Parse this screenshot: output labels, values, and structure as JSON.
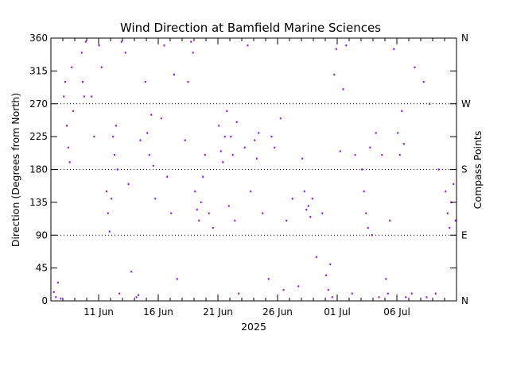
{
  "chart_data": {
    "type": "scatter",
    "title": "Wind Direction at Bamfield Marine Sciences",
    "xlabel": "2025",
    "ylabel": "Direction (Degrees from North)",
    "y2label": "Compass Points",
    "ylim": [
      0,
      360
    ],
    "yticks": [
      0,
      45,
      90,
      135,
      180,
      225,
      270,
      315,
      360
    ],
    "xlim": [
      "2025-06-07",
      "2025-07-11"
    ],
    "xticks": [
      {
        "date": "2025-06-11",
        "label": "11 Jun"
      },
      {
        "date": "2025-06-16",
        "label": "16 Jun"
      },
      {
        "date": "2025-06-21",
        "label": "21 Jun"
      },
      {
        "date": "2025-06-26",
        "label": "26 Jun"
      },
      {
        "date": "2025-07-01",
        "label": "01 Jul"
      },
      {
        "date": "2025-07-06",
        "label": "06 Jul"
      }
    ],
    "compass_points": [
      {
        "value": 0,
        "label": "N"
      },
      {
        "value": 90,
        "label": "E"
      },
      {
        "value": 180,
        "label": "S"
      },
      {
        "value": 270,
        "label": "W"
      },
      {
        "value": 360,
        "label": "N"
      }
    ],
    "gridlines": [
      90,
      180,
      270
    ],
    "grid_style": "dotted",
    "point_color": "#8b1cff",
    "series": [
      {
        "values": [
          {
            "x": "2025-06-07T06:00",
            "y": 12
          },
          {
            "x": "2025-06-07T10:00",
            "y": 5
          },
          {
            "x": "2025-06-07T14:00",
            "y": 25
          },
          {
            "x": "2025-06-07T20:00",
            "y": 3
          },
          {
            "x": "2025-06-08T02:00",
            "y": 280
          },
          {
            "x": "2025-06-08T05:00",
            "y": 300
          },
          {
            "x": "2025-06-08T08:00",
            "y": 240
          },
          {
            "x": "2025-06-08T11:00",
            "y": 210
          },
          {
            "x": "2025-06-08T14:00",
            "y": 190
          },
          {
            "x": "2025-06-08T18:00",
            "y": 320
          },
          {
            "x": "2025-06-08T21:00",
            "y": 260
          },
          {
            "x": "2025-06-09T14:00",
            "y": 340
          },
          {
            "x": "2025-06-09T16:00",
            "y": 300
          },
          {
            "x": "2025-06-09T19:00",
            "y": 280
          },
          {
            "x": "2025-06-09T22:00",
            "y": 355
          },
          {
            "x": "2025-06-10T10:00",
            "y": 280
          },
          {
            "x": "2025-06-10T15:00",
            "y": 225
          },
          {
            "x": "2025-06-11T01:00",
            "y": 350
          },
          {
            "x": "2025-06-11T06:00",
            "y": 320
          },
          {
            "x": "2025-06-11T16:00",
            "y": 150
          },
          {
            "x": "2025-06-11T19:00",
            "y": 120
          },
          {
            "x": "2025-06-11T22:00",
            "y": 95
          },
          {
            "x": "2025-06-12T02:00",
            "y": 140
          },
          {
            "x": "2025-06-12T05:00",
            "y": 225
          },
          {
            "x": "2025-06-12T08:00",
            "y": 200
          },
          {
            "x": "2025-06-12T11:00",
            "y": 240
          },
          {
            "x": "2025-06-12T14:00",
            "y": 180
          },
          {
            "x": "2025-06-12T18:00",
            "y": 10
          },
          {
            "x": "2025-06-12T22:00",
            "y": 355
          },
          {
            "x": "2025-06-13T06:00",
            "y": 340
          },
          {
            "x": "2025-06-13T12:00",
            "y": 160
          },
          {
            "x": "2025-06-13T18:00",
            "y": 40
          },
          {
            "x": "2025-06-14T04:00",
            "y": 5
          },
          {
            "x": "2025-06-14T08:00",
            "y": 8
          },
          {
            "x": "2025-06-14T12:00",
            "y": 220
          },
          {
            "x": "2025-06-14T22:00",
            "y": 300
          },
          {
            "x": "2025-06-15T02:00",
            "y": 230
          },
          {
            "x": "2025-06-15T06:00",
            "y": 200
          },
          {
            "x": "2025-06-15T10:00",
            "y": 255
          },
          {
            "x": "2025-06-15T14:00",
            "y": 185
          },
          {
            "x": "2025-06-15T18:00",
            "y": 140
          },
          {
            "x": "2025-06-16T06:00",
            "y": 250
          },
          {
            "x": "2025-06-16T12:00",
            "y": 350
          },
          {
            "x": "2025-06-16T18:00",
            "y": 170
          },
          {
            "x": "2025-06-17T02:00",
            "y": 120
          },
          {
            "x": "2025-06-17T08:00",
            "y": 310
          },
          {
            "x": "2025-06-17T14:00",
            "y": 30
          },
          {
            "x": "2025-06-18T06:00",
            "y": 220
          },
          {
            "x": "2025-06-18T12:00",
            "y": 300
          },
          {
            "x": "2025-06-18T18:00",
            "y": 355
          },
          {
            "x": "2025-06-18T22:00",
            "y": 340
          },
          {
            "x": "2025-06-19T02:00",
            "y": 150
          },
          {
            "x": "2025-06-19T06:00",
            "y": 125
          },
          {
            "x": "2025-06-19T10:00",
            "y": 110
          },
          {
            "x": "2025-06-19T14:00",
            "y": 135
          },
          {
            "x": "2025-06-19T18:00",
            "y": 170
          },
          {
            "x": "2025-06-19T22:00",
            "y": 200
          },
          {
            "x": "2025-06-20T06:00",
            "y": 120
          },
          {
            "x": "2025-06-20T14:00",
            "y": 100
          },
          {
            "x": "2025-06-21T02:00",
            "y": 240
          },
          {
            "x": "2025-06-21T06:00",
            "y": 205
          },
          {
            "x": "2025-06-21T10:00",
            "y": 190
          },
          {
            "x": "2025-06-21T14:00",
            "y": 225
          },
          {
            "x": "2025-06-21T18:00",
            "y": 260
          },
          {
            "x": "2025-06-21T22:00",
            "y": 130
          },
          {
            "x": "2025-06-22T02:00",
            "y": 225
          },
          {
            "x": "2025-06-22T06:00",
            "y": 200
          },
          {
            "x": "2025-06-22T10:00",
            "y": 110
          },
          {
            "x": "2025-06-22T14:00",
            "y": 245
          },
          {
            "x": "2025-06-22T18:00",
            "y": 10
          },
          {
            "x": "2025-06-23T06:00",
            "y": 210
          },
          {
            "x": "2025-06-23T12:00",
            "y": 350
          },
          {
            "x": "2025-06-23T18:00",
            "y": 150
          },
          {
            "x": "2025-06-24T02:00",
            "y": 220
          },
          {
            "x": "2025-06-24T06:00",
            "y": 195
          },
          {
            "x": "2025-06-24T10:00",
            "y": 230
          },
          {
            "x": "2025-06-24T18:00",
            "y": 120
          },
          {
            "x": "2025-06-25T06:00",
            "y": 30
          },
          {
            "x": "2025-06-25T12:00",
            "y": 225
          },
          {
            "x": "2025-06-25T18:00",
            "y": 210
          },
          {
            "x": "2025-06-26T06:00",
            "y": 250
          },
          {
            "x": "2025-06-26T12:00",
            "y": 15
          },
          {
            "x": "2025-06-26T18:00",
            "y": 110
          },
          {
            "x": "2025-06-27T06:00",
            "y": 140
          },
          {
            "x": "2025-06-27T18:00",
            "y": 20
          },
          {
            "x": "2025-06-28T02:00",
            "y": 195
          },
          {
            "x": "2025-06-28T06:00",
            "y": 150
          },
          {
            "x": "2025-06-28T10:00",
            "y": 125
          },
          {
            "x": "2025-06-28T14:00",
            "y": 130
          },
          {
            "x": "2025-06-28T18:00",
            "y": 115
          },
          {
            "x": "2025-06-28T22:00",
            "y": 140
          },
          {
            "x": "2025-06-29T06:00",
            "y": 60
          },
          {
            "x": "2025-06-29T18:00",
            "y": 120
          },
          {
            "x": "2025-06-30T02:00",
            "y": 35
          },
          {
            "x": "2025-06-30T06:00",
            "y": 15
          },
          {
            "x": "2025-06-30T10:00",
            "y": 50
          },
          {
            "x": "2025-06-30T14:00",
            "y": 5
          },
          {
            "x": "2025-06-30T18:00",
            "y": 310
          },
          {
            "x": "2025-06-30T22:00",
            "y": 345
          },
          {
            "x": "2025-07-01T06:00",
            "y": 205
          },
          {
            "x": "2025-07-01T12:00",
            "y": 290
          },
          {
            "x": "2025-07-01T18:00",
            "y": 350
          },
          {
            "x": "2025-07-02T06:00",
            "y": 10
          },
          {
            "x": "2025-07-02T12:00",
            "y": 200
          },
          {
            "x": "2025-07-03T02:00",
            "y": 180
          },
          {
            "x": "2025-07-03T06:00",
            "y": 150
          },
          {
            "x": "2025-07-03T10:00",
            "y": 120
          },
          {
            "x": "2025-07-03T14:00",
            "y": 100
          },
          {
            "x": "2025-07-03T18:00",
            "y": 210
          },
          {
            "x": "2025-07-03T22:00",
            "y": 90
          },
          {
            "x": "2025-07-04T06:00",
            "y": 230
          },
          {
            "x": "2025-07-04T12:00",
            "y": 5
          },
          {
            "x": "2025-07-04T18:00",
            "y": 200
          },
          {
            "x": "2025-07-05T02:00",
            "y": 30
          },
          {
            "x": "2025-07-05T06:00",
            "y": 10
          },
          {
            "x": "2025-07-05T10:00",
            "y": 110
          },
          {
            "x": "2025-07-05T18:00",
            "y": 345
          },
          {
            "x": "2025-07-06T02:00",
            "y": 230
          },
          {
            "x": "2025-07-06T06:00",
            "y": 200
          },
          {
            "x": "2025-07-06T10:00",
            "y": 260
          },
          {
            "x": "2025-07-06T14:00",
            "y": 215
          },
          {
            "x": "2025-07-06T18:00",
            "y": 5
          },
          {
            "x": "2025-07-07T06:00",
            "y": 10
          },
          {
            "x": "2025-07-07T12:00",
            "y": 320
          },
          {
            "x": "2025-07-08T06:00",
            "y": 300
          },
          {
            "x": "2025-07-08T12:00",
            "y": 5
          },
          {
            "x": "2025-07-08T18:00",
            "y": 270
          },
          {
            "x": "2025-07-09T06:00",
            "y": 10
          },
          {
            "x": "2025-07-09T12:00",
            "y": 180
          },
          {
            "x": "2025-07-10T02:00",
            "y": 150
          },
          {
            "x": "2025-07-10T06:00",
            "y": 120
          },
          {
            "x": "2025-07-10T10:00",
            "y": 100
          },
          {
            "x": "2025-07-10T14:00",
            "y": 135
          },
          {
            "x": "2025-07-10T18:00",
            "y": 160
          },
          {
            "x": "2025-07-10T22:00",
            "y": 110
          }
        ]
      }
    ]
  }
}
